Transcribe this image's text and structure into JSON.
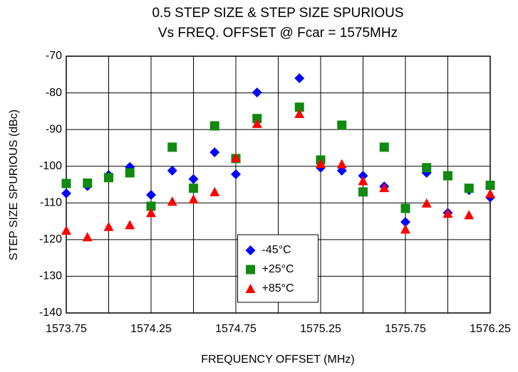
{
  "chart_data": {
    "type": "scatter",
    "title": [
      "0.5 STEP SIZE & STEP SIZE SPURIOUS",
      "Vs FREQ. OFFSET @ Fcar = 1575MHz"
    ],
    "xlabel": "FREQUENCY OFFSET (MHz)",
    "ylabel": "STEP SIZE SPURIOUS (dBc)",
    "x": [
      1573.75,
      1573.875,
      1574.0,
      1574.125,
      1574.25,
      1574.375,
      1574.5,
      1574.625,
      1574.75,
      1574.875,
      1575.0,
      1575.125,
      1575.25,
      1575.375,
      1575.5,
      1575.625,
      1575.75,
      1575.875,
      1576.0,
      1576.125,
      1576.25
    ],
    "series": [
      {
        "name": "-45°C",
        "color": "#0000ff",
        "marker": "diamond",
        "values": [
          -107.4,
          -105.4,
          -102.4,
          -100.2,
          -107.8,
          -101.2,
          -103.5,
          -96.2,
          -102.2,
          -79.9,
          null,
          -76,
          -100.4,
          -101.2,
          -102.6,
          -105.5,
          -115.2,
          -101.8,
          -112.7,
          -106.5,
          -108.5
        ]
      },
      {
        "name": "+25°C",
        "color": "#108a10",
        "marker": "square",
        "values": [
          -104.7,
          -104.6,
          -103.1,
          -101.8,
          -110.9,
          -94.8,
          -106,
          -89,
          -97.9,
          -87,
          null,
          -83.9,
          -98.3,
          -88.8,
          -107,
          -94.8,
          -111.5,
          -100.4,
          -102.6,
          -106,
          -105.2
        ]
      },
      {
        "name": "+85°C",
        "color": "#ff0000",
        "marker": "triangle",
        "values": [
          -117.5,
          -119.3,
          -116.5,
          -116,
          -112.7,
          -109.6,
          -109,
          -107,
          -97.7,
          -88.4,
          null,
          -85.7,
          -99.3,
          -99.4,
          -104,
          -105.9,
          -117.2,
          -110.1,
          -112.9,
          -113.3,
          -107.5
        ]
      }
    ],
    "xlim": [
      1573.75,
      1576.25
    ],
    "xticks": [
      1573.75,
      1574.25,
      1574.75,
      1575.25,
      1575.75,
      1576.25
    ],
    "xminor_ticks": [
      1574.0,
      1574.5,
      1575.0,
      1575.5,
      1576.0
    ],
    "ylim": [
      -140,
      -70
    ],
    "yticks": [
      -140,
      -130,
      -120,
      -110,
      -100,
      -90,
      -80,
      -70
    ],
    "grid": true,
    "legend_position": "lower center"
  }
}
